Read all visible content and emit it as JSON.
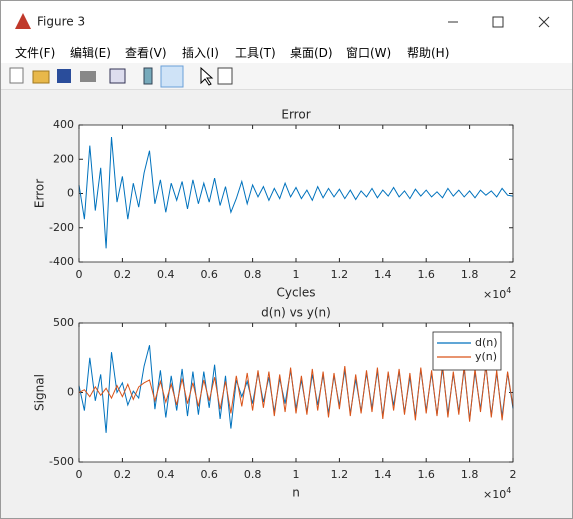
{
  "window": {
    "title": "Figure 3",
    "menu": [
      "文件(F)",
      "编辑(E)",
      "查看(V)",
      "插入(I)",
      "工具(T)",
      "桌面(D)",
      "窗口(W)",
      "帮助(H)"
    ]
  },
  "chart_data": [
    {
      "type": "line",
      "title": "Error",
      "xlabel": "Cycles",
      "ylabel": "Error",
      "color": "#0072BD",
      "x_multiplier": "×10",
      "x_multiplier_exponent": "4",
      "x": [
        0,
        250,
        500,
        750,
        1000,
        1250,
        1500,
        1750,
        2000,
        2250,
        2500,
        2750,
        3000,
        3250,
        3500,
        3750,
        4000,
        4250,
        4500,
        4750,
        5000,
        5250,
        5500,
        5750,
        6000,
        6250,
        6500,
        6750,
        7000,
        7250,
        7500,
        7750,
        8000,
        8250,
        8500,
        8750,
        9000,
        9250,
        9500,
        9750,
        10000,
        10250,
        10500,
        10750,
        11000,
        11250,
        11500,
        11750,
        12000,
        12250,
        12500,
        12750,
        13000,
        13250,
        13500,
        13750,
        14000,
        14250,
        14500,
        14750,
        15000,
        15250,
        15500,
        15750,
        16000,
        16250,
        16500,
        16750,
        17000,
        17250,
        17500,
        17750,
        18000,
        18250,
        18500,
        18750,
        19000,
        19250,
        19500,
        19750,
        20000
      ],
      "values": [
        50,
        -150,
        280,
        -100,
        150,
        -320,
        330,
        -50,
        100,
        -150,
        60,
        -80,
        120,
        250,
        -60,
        80,
        -110,
        60,
        -40,
        70,
        -90,
        80,
        -60,
        60,
        -50,
        90,
        -70,
        40,
        -110,
        -30,
        70,
        -60,
        50,
        -20,
        40,
        -40,
        30,
        -30,
        60,
        -20,
        35,
        -30,
        20,
        -40,
        40,
        -25,
        30,
        -20,
        25,
        -30,
        20,
        -35,
        15,
        -20,
        30,
        -25,
        20,
        -15,
        35,
        -20,
        15,
        -30,
        25,
        -15,
        20,
        -20,
        10,
        -25,
        30,
        -15,
        20,
        -20,
        15,
        -25,
        20,
        -10,
        15,
        -20,
        30,
        -10,
        -15
      ],
      "xlim": [
        0,
        20000
      ],
      "xticks": [
        0,
        {
          "value": 2000,
          "label": "0.2"
        },
        {
          "value": 4000,
          "label": "0.4"
        },
        {
          "value": 6000,
          "label": "0.6"
        },
        {
          "value": 8000,
          "label": "0.8"
        },
        {
          "value": 10000,
          "label": "1"
        },
        {
          "value": 12000,
          "label": "1.2"
        },
        {
          "value": 14000,
          "label": "1.4"
        },
        {
          "value": 16000,
          "label": "1.6"
        },
        {
          "value": 18000,
          "label": "1.8"
        },
        {
          "value": 20000,
          "label": "2"
        }
      ],
      "ylim": [
        -400,
        400
      ],
      "yticks": [
        -400,
        -200,
        0,
        200,
        400
      ]
    },
    {
      "type": "line",
      "title": "d(n) vs y(n)",
      "xlabel": "n",
      "ylabel": "Signal",
      "legend": "upper right",
      "x_multiplier": "×10",
      "x_multiplier_exponent": "4",
      "x": [
        0,
        250,
        500,
        750,
        1000,
        1250,
        1500,
        1750,
        2000,
        2250,
        2500,
        2750,
        3000,
        3250,
        3500,
        3750,
        4000,
        4250,
        4500,
        4750,
        5000,
        5250,
        5500,
        5750,
        6000,
        6250,
        6500,
        6750,
        7000,
        7250,
        7500,
        7750,
        8000,
        8250,
        8500,
        8750,
        9000,
        9250,
        9500,
        9750,
        10000,
        10250,
        10500,
        10750,
        11000,
        11250,
        11500,
        11750,
        12000,
        12250,
        12500,
        12750,
        13000,
        13250,
        13500,
        13750,
        14000,
        14250,
        14500,
        14750,
        15000,
        15250,
        15500,
        15750,
        16000,
        16250,
        16500,
        16750,
        17000,
        17250,
        17500,
        17750,
        18000,
        18250,
        18500,
        18750,
        19000,
        19250,
        19500,
        19750,
        20000
      ],
      "series": [
        {
          "name": "d(n)",
          "color": "#0072BD",
          "values": [
            50,
            -130,
            250,
            -60,
            130,
            -290,
            290,
            0,
            70,
            -90,
            10,
            -40,
            190,
            340,
            -120,
            160,
            -180,
            120,
            -130,
            170,
            -170,
            150,
            -160,
            150,
            -110,
            200,
            -190,
            120,
            -260,
            90,
            -30,
            80,
            -80,
            140,
            -70,
            110,
            -140,
            100,
            -80,
            160,
            -115,
            90,
            -140,
            130,
            -90,
            125,
            -150,
            120,
            -95,
            160,
            -150,
            95,
            -135,
            140,
            -110,
            155,
            -170,
            135,
            -95,
            150,
            -145,
            110,
            -175,
            165,
            -130,
            140,
            -160,
            175,
            -150,
            135,
            -140,
            170,
            -195,
            145,
            -120,
            190,
            -165,
            140,
            -170,
            140,
            -115
          ]
        },
        {
          "name": "y(n)",
          "color": "#D95319",
          "values": [
            0,
            20,
            -30,
            40,
            -20,
            30,
            -40,
            50,
            -30,
            60,
            -50,
            40,
            70,
            90,
            -60,
            80,
            -70,
            60,
            -90,
            100,
            -80,
            70,
            -100,
            90,
            -60,
            110,
            -120,
            80,
            -150,
            120,
            -100,
            140,
            -130,
            160,
            -110,
            150,
            -170,
            130,
            -140,
            180,
            -150,
            120,
            -160,
            170,
            -130,
            150,
            -180,
            140,
            -120,
            190,
            -170,
            130,
            -150,
            160,
            -140,
            180,
            -190,
            150,
            -130,
            170,
            -160,
            140,
            -200,
            180,
            -150,
            160,
            -170,
            200,
            -180,
            150,
            -160,
            190,
            -210,
            170,
            -140,
            200,
            -180,
            160,
            -200,
            150,
            -100
          ]
        }
      ],
      "xlim": [
        0,
        20000
      ],
      "xticks": [
        0,
        {
          "value": 2000,
          "label": "0.2"
        },
        {
          "value": 4000,
          "label": "0.4"
        },
        {
          "value": 6000,
          "label": "0.6"
        },
        {
          "value": 8000,
          "label": "0.8"
        },
        {
          "value": 10000,
          "label": "1"
        },
        {
          "value": 12000,
          "label": "1.2"
        },
        {
          "value": 14000,
          "label": "1.4"
        },
        {
          "value": 16000,
          "label": "1.6"
        },
        {
          "value": 18000,
          "label": "1.8"
        },
        {
          "value": 20000,
          "label": "2"
        }
      ],
      "ylim": [
        -500,
        500
      ],
      "yticks": [
        -500,
        0,
        500
      ]
    }
  ]
}
